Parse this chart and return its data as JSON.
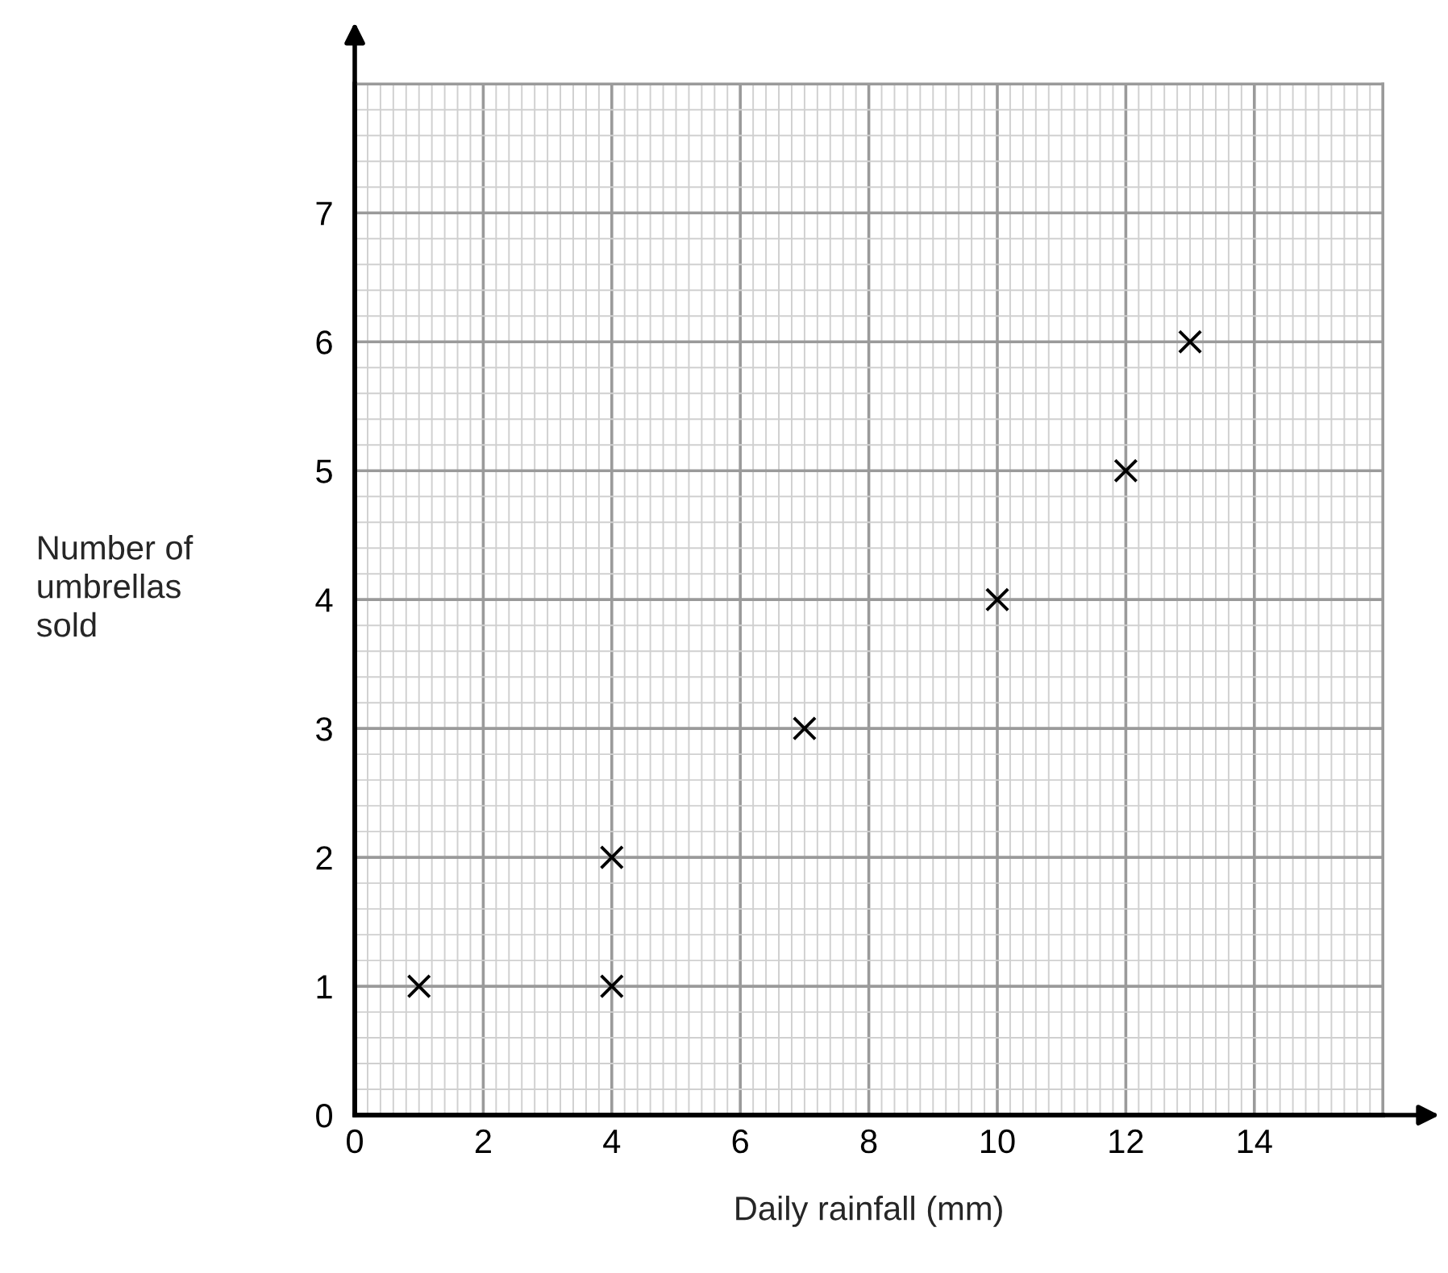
{
  "chart_data": {
    "type": "scatter",
    "xlabel": "Daily rainfall (mm)",
    "ylabel": "Number of\numbrellas\nsold",
    "x": [
      1,
      4,
      4,
      7,
      10,
      12,
      13
    ],
    "series": [
      {
        "color": "#000000",
        "values": [
          1,
          1,
          2,
          3,
          4,
          5,
          6
        ]
      }
    ],
    "xlim": [
      0,
      16
    ],
    "ylim": [
      0,
      8
    ],
    "xticks": [
      0,
      2,
      4,
      6,
      8,
      10,
      12,
      14
    ],
    "yticks": [
      0,
      1,
      2,
      3,
      4,
      5,
      6,
      7
    ],
    "grid": true,
    "marker": "cross"
  }
}
